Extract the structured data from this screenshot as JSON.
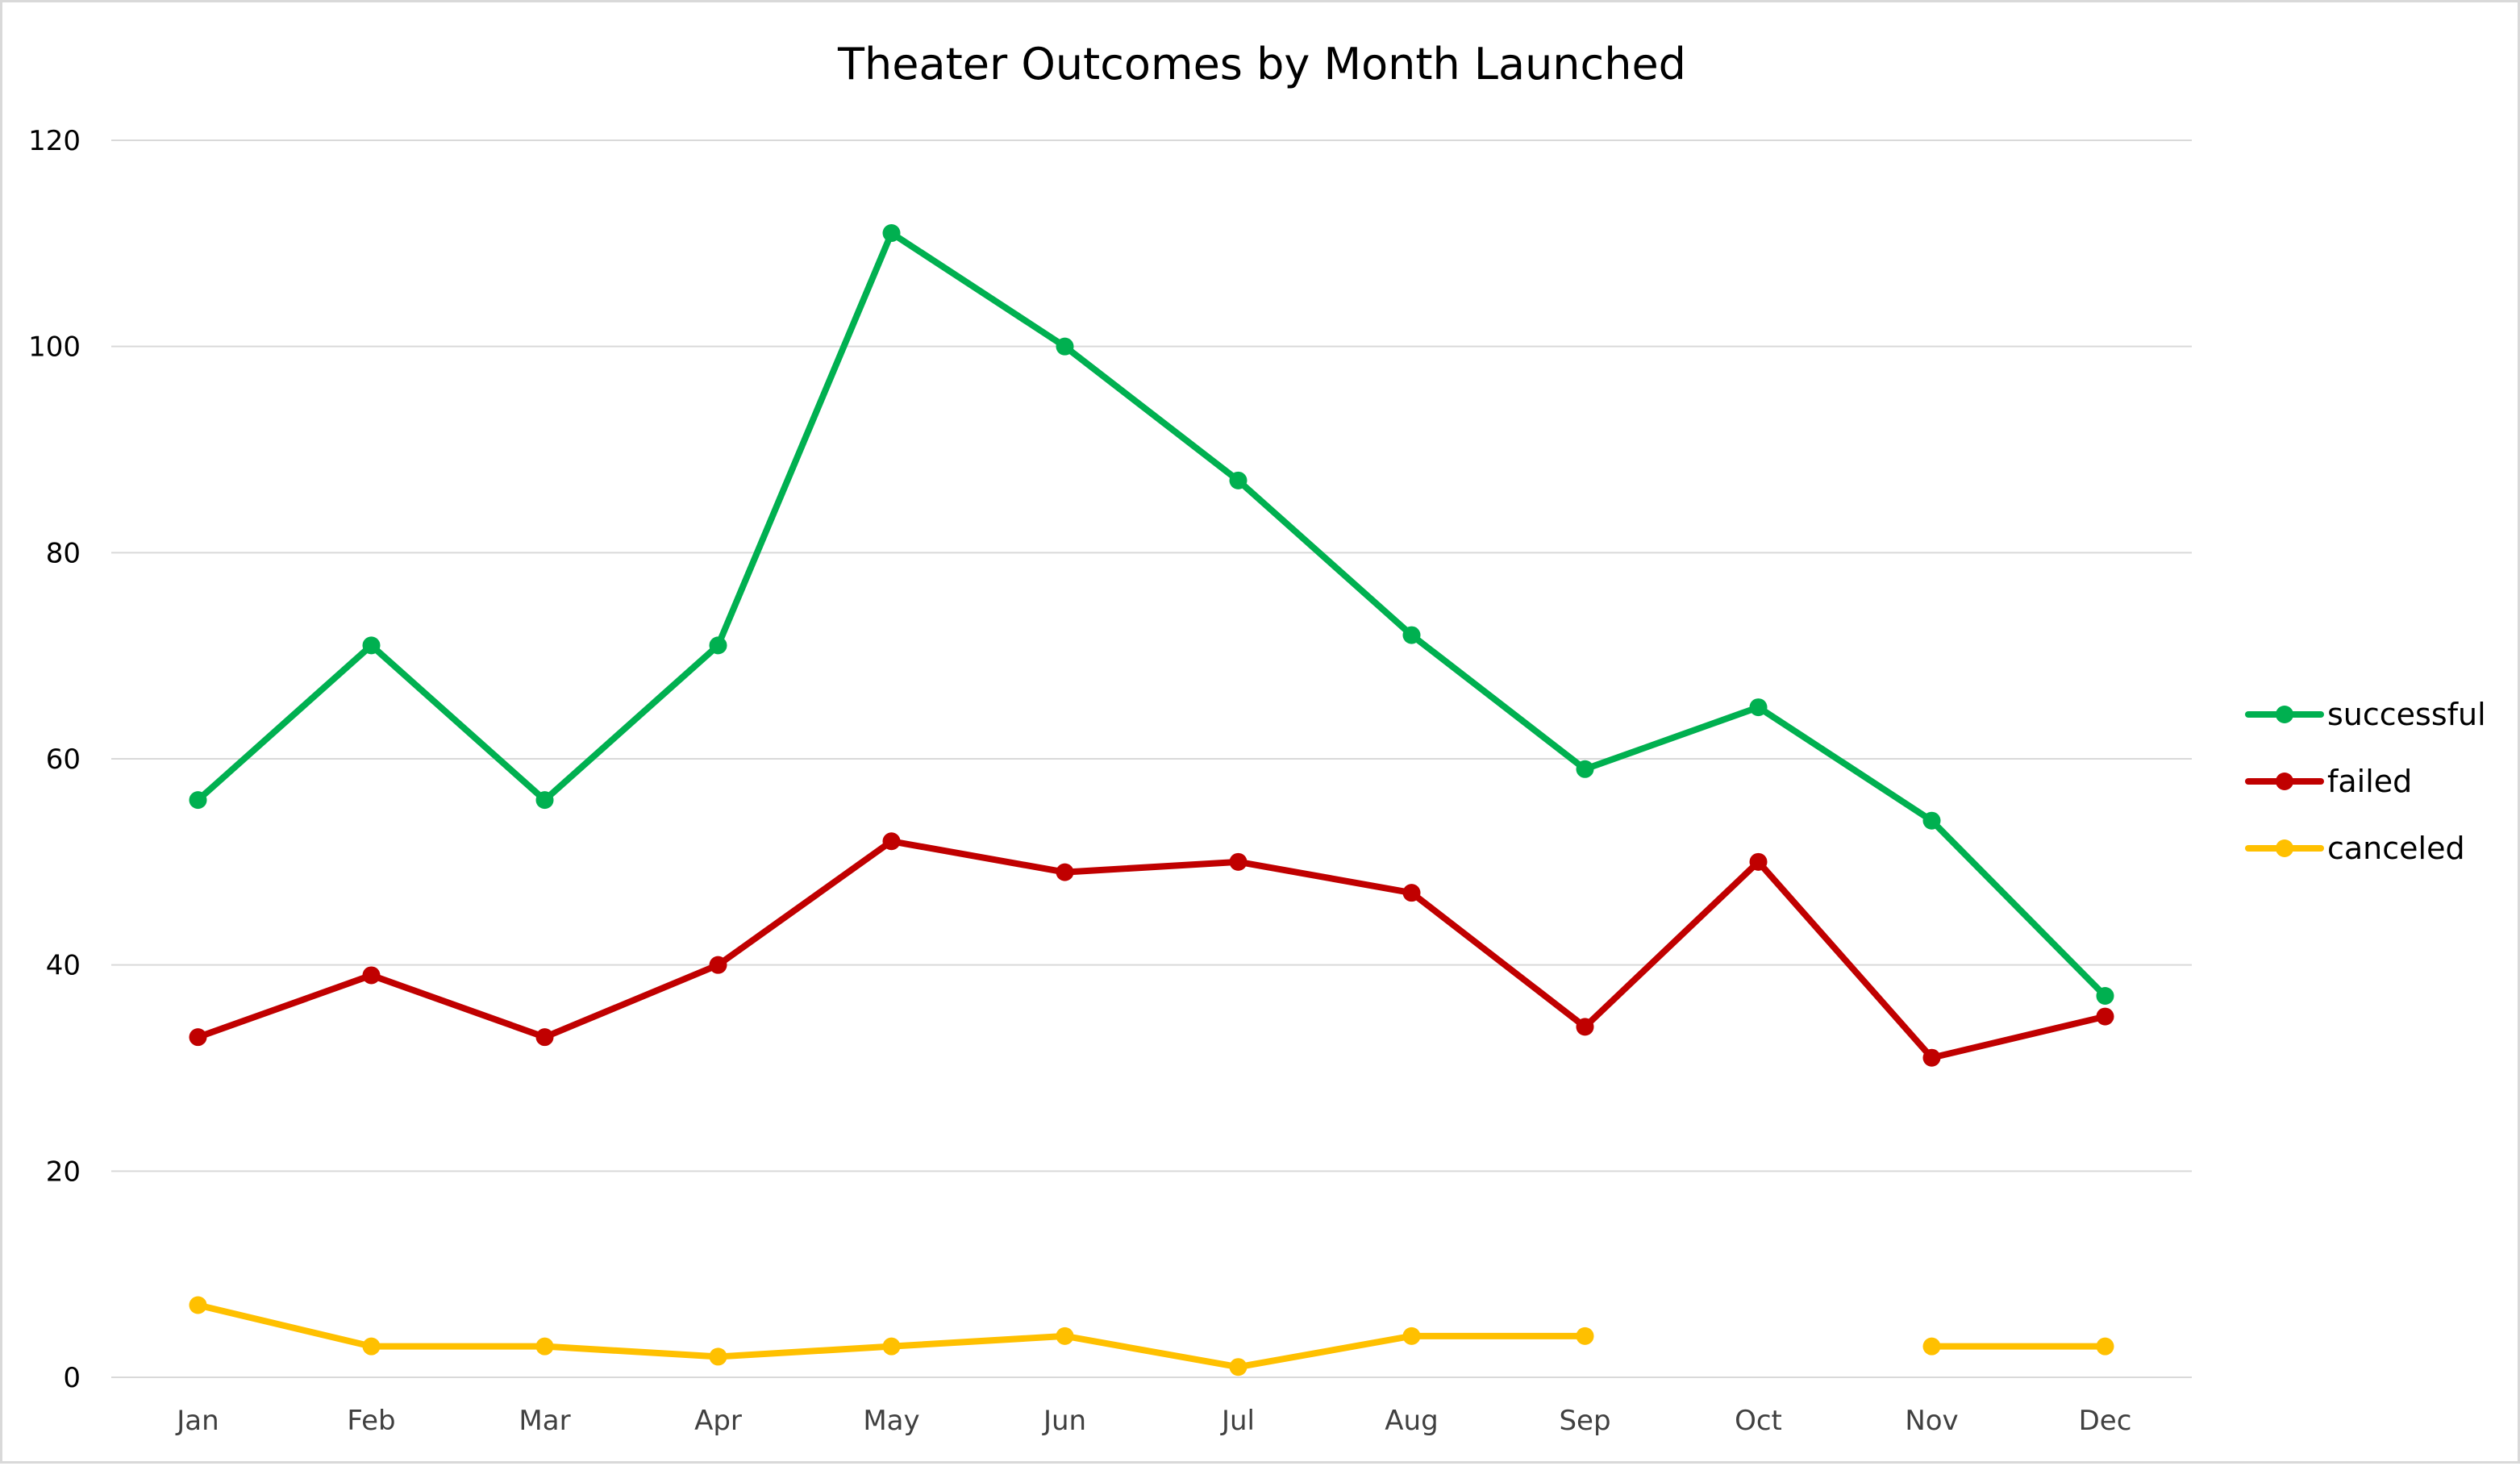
{
  "chart_data": {
    "type": "line",
    "title": "Theater Outcomes by Month Launched",
    "xlabel": "",
    "ylabel": "",
    "categories": [
      "Jan",
      "Feb",
      "Mar",
      "Apr",
      "May",
      "Jun",
      "Jul",
      "Aug",
      "Sep",
      "Oct",
      "Nov",
      "Dec"
    ],
    "ylim": [
      0,
      120
    ],
    "yticks": [
      0,
      20,
      40,
      60,
      80,
      100,
      120
    ],
    "grid": true,
    "legend_position": "right",
    "series": [
      {
        "name": "successful",
        "color": "#00b050",
        "values": [
          56,
          71,
          56,
          71,
          111,
          100,
          87,
          72,
          59,
          65,
          54,
          37
        ]
      },
      {
        "name": "failed",
        "color": "#c00000",
        "values": [
          33,
          39,
          33,
          40,
          52,
          49,
          50,
          47,
          34,
          50,
          31,
          35
        ]
      },
      {
        "name": "canceled",
        "color": "#ffc000",
        "values": [
          7,
          3,
          3,
          2,
          3,
          4,
          1,
          4,
          4,
          null,
          3,
          3
        ]
      }
    ]
  }
}
